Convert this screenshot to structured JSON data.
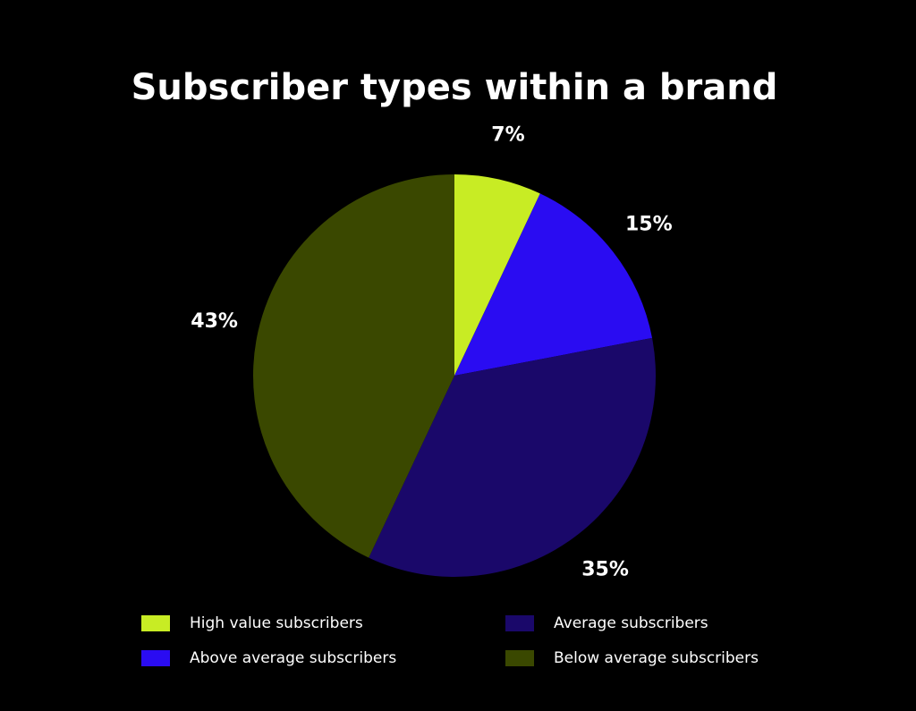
{
  "chart_data": {
    "type": "pie",
    "title": "Subscriber types within a brand",
    "categories": [
      "High value subscribers",
      "Above average subscribers",
      "Average subscribers",
      "Below average subscribers"
    ],
    "values": [
      7,
      15,
      35,
      43
    ],
    "value_labels": [
      "7%",
      "15%",
      "35%",
      "43%"
    ],
    "colors": [
      "#c8ec24",
      "#2a0cf2",
      "#1a086a",
      "#3a4800"
    ]
  }
}
